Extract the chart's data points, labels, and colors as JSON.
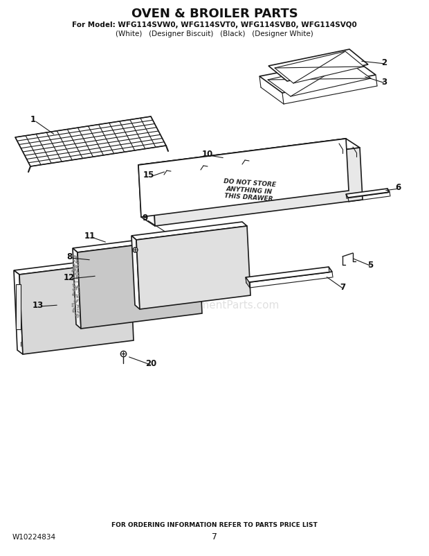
{
  "title": "OVEN & BROILER PARTS",
  "subtitle1": "For Model: WFG114SVW0, WFG114SVT0, WFG114SVB0, WFG114SVQ0",
  "subtitle2": "(White)   (Designer Biscuit)   (Black)   (Designer White)",
  "footer1": "FOR ORDERING INFORMATION REFER TO PARTS PRICE LIST",
  "footer2": "7",
  "footer_left": "W10224834",
  "bg_color": "#ffffff"
}
